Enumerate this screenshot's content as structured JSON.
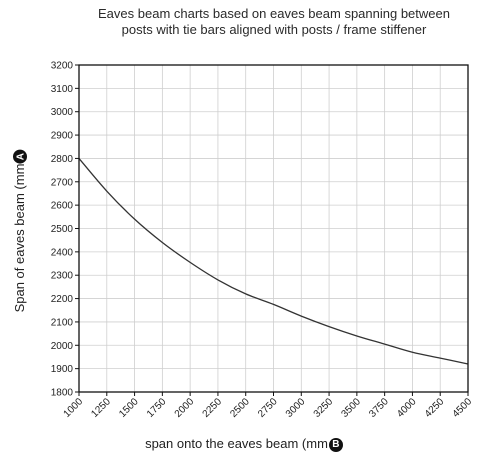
{
  "chart_data": {
    "type": "line",
    "title_line1": "Eaves beam charts based on eaves beam spanning between",
    "title_line2": "posts with tie bars aligned with posts / frame stiffener",
    "xlabel": "span onto the eaves beam (mm",
    "xlabel_marker": "B",
    "ylabel": "Span of eaves beam (mm",
    "ylabel_marker": "A",
    "xlim": [
      1000,
      4500
    ],
    "ylim": [
      1800,
      3200
    ],
    "xticks": [
      1000,
      1250,
      1500,
      1750,
      2000,
      2250,
      2500,
      2750,
      3000,
      3250,
      3500,
      3750,
      4000,
      4250,
      4500
    ],
    "yticks": [
      1800,
      1900,
      2000,
      2100,
      2200,
      2300,
      2400,
      2500,
      2600,
      2700,
      2800,
      2900,
      3000,
      3100,
      3200
    ],
    "grid": true,
    "series": [
      {
        "color": "#333333",
        "x": [
          1000,
          1250,
          1500,
          1750,
          2000,
          2250,
          2500,
          2750,
          3000,
          3250,
          3500,
          3750,
          4000,
          4250,
          4500
        ],
        "y": [
          2800,
          2660,
          2540,
          2440,
          2355,
          2280,
          2220,
          2175,
          2125,
          2080,
          2040,
          2005,
          1970,
          1945,
          1920
        ]
      }
    ]
  }
}
